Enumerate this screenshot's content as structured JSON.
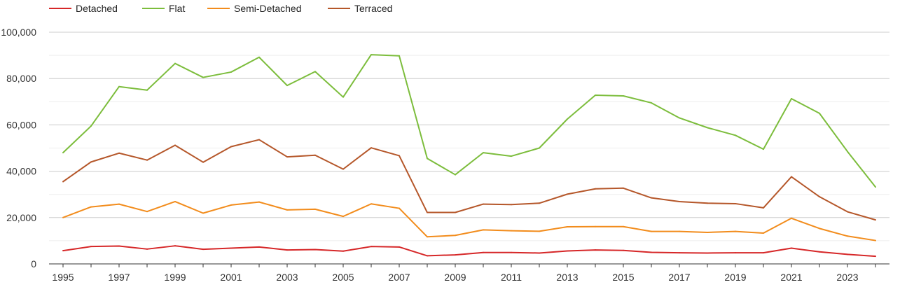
{
  "chart_data": {
    "type": "line",
    "title": "",
    "xlabel": "",
    "ylabel": "",
    "ylim": [
      0,
      100000
    ],
    "y_ticks": [
      "0",
      "20,000",
      "40,000",
      "60,000",
      "80,000",
      "100,000"
    ],
    "x_tick_labels": [
      "1995",
      "1997",
      "1999",
      "2001",
      "2003",
      "2005",
      "2007",
      "2009",
      "2011",
      "2013",
      "2015",
      "2017",
      "2019",
      "2021",
      "2023"
    ],
    "x": [
      1995,
      1996,
      1997,
      1998,
      1999,
      2000,
      2001,
      2002,
      2003,
      2004,
      2005,
      2006,
      2007,
      2008,
      2009,
      2010,
      2011,
      2012,
      2013,
      2014,
      2015,
      2016,
      2017,
      2018,
      2019,
      2020,
      2021,
      2022,
      2023,
      2024
    ],
    "grid": true,
    "legend_position": "top-left",
    "series": [
      {
        "name": "Detached",
        "color": "#d62728",
        "values": [
          5700,
          7500,
          7700,
          6400,
          7800,
          6300,
          6800,
          7300,
          6000,
          6200,
          5500,
          7500,
          7300,
          3500,
          3900,
          4900,
          4900,
          4700,
          5600,
          6000,
          5800,
          5000,
          4800,
          4700,
          4800,
          4800,
          6800,
          5200,
          4100,
          3300
        ]
      },
      {
        "name": "Flat",
        "color": "#7cbd3c",
        "values": [
          48000,
          59500,
          76500,
          75000,
          86500,
          80500,
          82800,
          89200,
          77000,
          83000,
          72000,
          90300,
          89800,
          45500,
          38500,
          48000,
          46500,
          50000,
          62500,
          72800,
          72500,
          69500,
          63000,
          58800,
          55500,
          49500,
          71300,
          65000,
          48500,
          33200
        ]
      },
      {
        "name": "Semi-Detached",
        "color": "#f28c1c",
        "values": [
          20000,
          24600,
          25800,
          22600,
          26900,
          21900,
          25400,
          26700,
          23300,
          23600,
          20500,
          25900,
          24000,
          11700,
          12300,
          14700,
          14300,
          14100,
          16000,
          16100,
          16100,
          14000,
          14000,
          13600,
          14000,
          13300,
          19700,
          15300,
          12000,
          10100
        ]
      },
      {
        "name": "Terraced",
        "color": "#b5572a",
        "values": [
          35500,
          44000,
          47800,
          44800,
          51200,
          43900,
          50600,
          53600,
          46200,
          46900,
          40900,
          50100,
          46700,
          22200,
          22200,
          25800,
          25600,
          26200,
          30100,
          32400,
          32700,
          28500,
          26900,
          26200,
          26000,
          24200,
          37600,
          29000,
          22500,
          19000
        ]
      }
    ]
  }
}
